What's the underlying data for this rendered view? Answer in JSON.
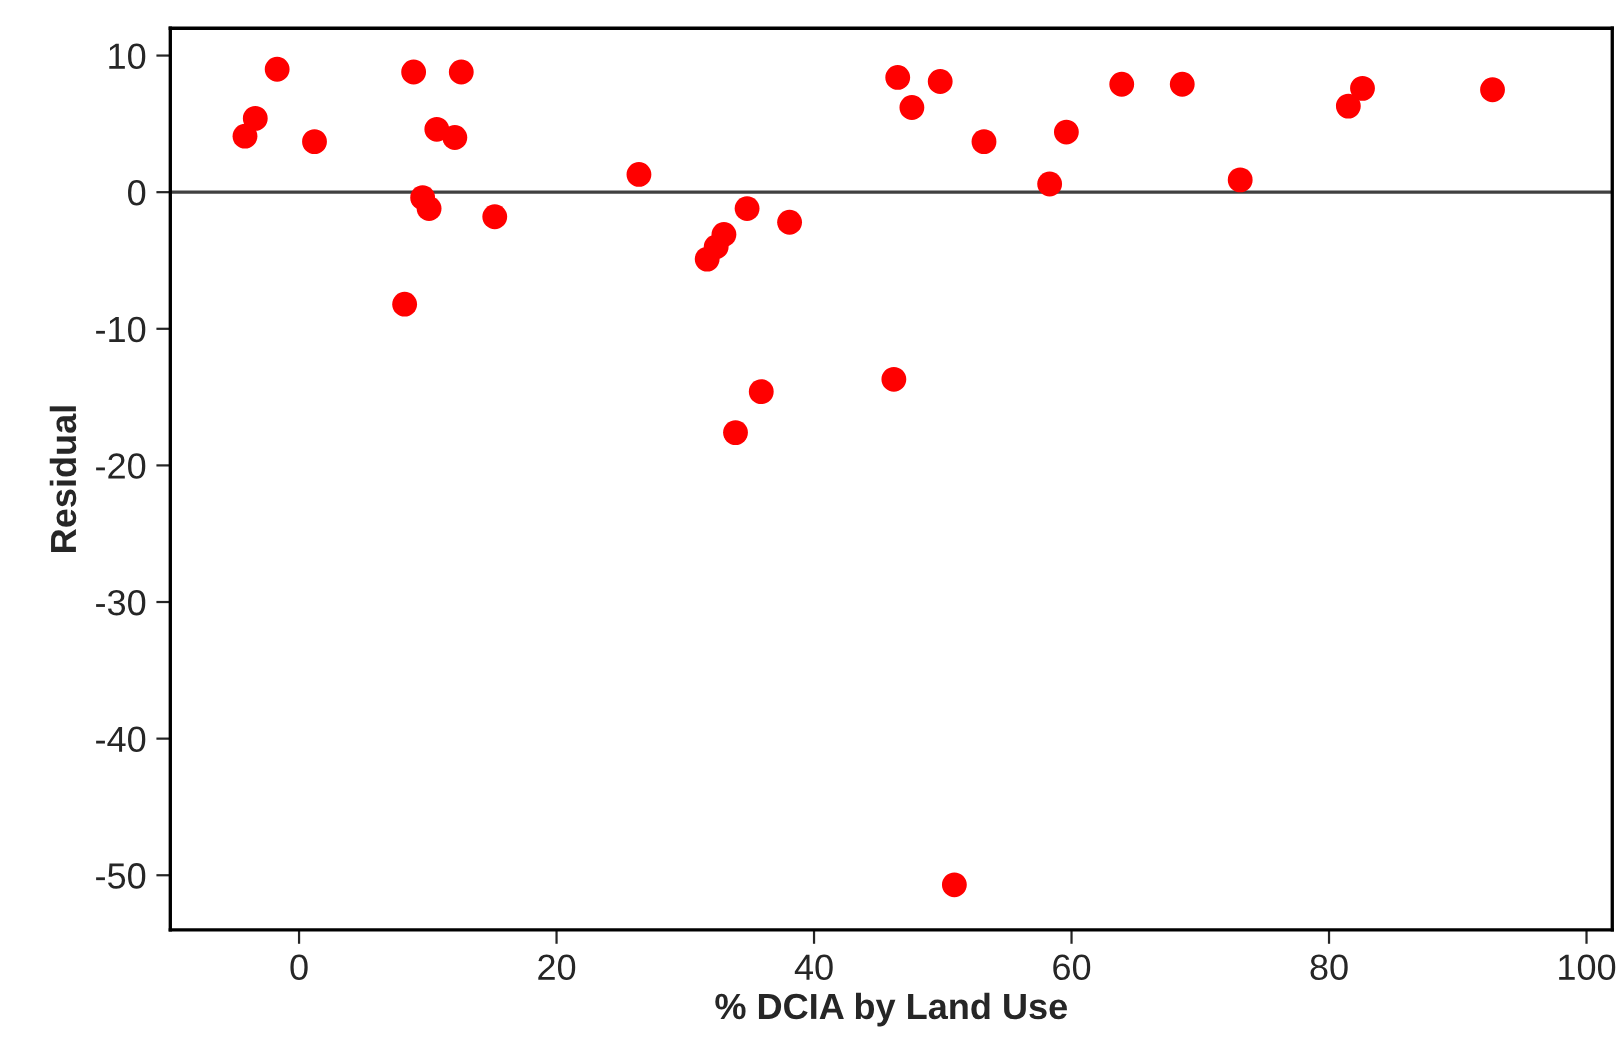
{
  "chart_data": {
    "type": "scatter",
    "xlabel": "% DCIA by Land Use",
    "ylabel": "Residual",
    "series": [
      {
        "color": "#ff0000",
        "x": [
          -4.2,
          -3.4,
          -1.7,
          1.2,
          8.9,
          12.6,
          10.7,
          12.1,
          9.6,
          10.1,
          15.2,
          8.2,
          26.4,
          31.7,
          32.4,
          33.0,
          34.8,
          38.1,
          33.9,
          35.9,
          46.2,
          46.5,
          47.6,
          49.8,
          53.2,
          59.6,
          58.3,
          63.9,
          68.6,
          73.1,
          81.5,
          82.6,
          92.7,
          50.9
        ],
        "values": [
          4.1,
          5.4,
          9.0,
          3.7,
          8.8,
          8.8,
          4.6,
          4.0,
          -0.4,
          -1.2,
          -1.8,
          -8.2,
          1.3,
          -4.9,
          -4.0,
          -3.1,
          -1.2,
          -2.2,
          -17.6,
          -14.6,
          -13.7,
          8.4,
          6.2,
          8.1,
          3.7,
          4.4,
          0.6,
          7.9,
          7.9,
          0.9,
          6.3,
          7.6,
          7.5,
          -50.7
        ]
      }
    ],
    "xlim": [
      -10,
      102
    ],
    "ylim": [
      -54,
      12
    ],
    "xticks": [
      0,
      20,
      40,
      60,
      80,
      100
    ],
    "yticks": [
      -50,
      -40,
      -30,
      -20,
      -10,
      0,
      10
    ],
    "ref_lines": [
      {
        "axis": "y",
        "value": 0,
        "color": "#404040"
      }
    ],
    "marker": "circle",
    "grid": false
  }
}
